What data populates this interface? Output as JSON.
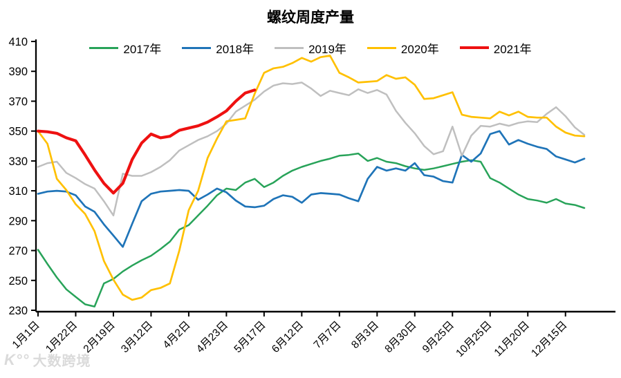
{
  "title": "螺纹周度产量",
  "watermark": {
    "logo": "K°°",
    "text": "大数跨境"
  },
  "chart_data": {
    "type": "line",
    "title": "螺纹周度产量",
    "xlabel": "",
    "ylabel": "",
    "ylim": [
      230,
      410
    ],
    "ytick_step": 20,
    "grid": false,
    "legend_position": "top",
    "x_tick_labels": [
      "1月1日",
      "1月22日",
      "2月19日",
      "3月12日",
      "4月2日",
      "4月23日",
      "5月17日",
      "6月12日",
      "7月7日",
      "8月3日",
      "8月30日",
      "9月25日",
      "10月25日",
      "11月20日",
      "12月15日"
    ],
    "points_per_tick": 4,
    "n_points": 59,
    "series": [
      {
        "name": "2017年",
        "color": "#28A359",
        "line_width": 2.5,
        "values": [
          270.5,
          261,
          252,
          244,
          239,
          234,
          232.5,
          248,
          251,
          256,
          260,
          263.5,
          266.5,
          271,
          276,
          284,
          287,
          293.5,
          300,
          307,
          311.5,
          310.5,
          315.5,
          318,
          312.5,
          315.5,
          320,
          323.5,
          326,
          328,
          330,
          331.5,
          333.5,
          334,
          335,
          330,
          332,
          329.5,
          328.5,
          326.5,
          325,
          324,
          325,
          326.5,
          328,
          329.5,
          330.5,
          329.5,
          318.5,
          315.5,
          311.5,
          307.5,
          304.5,
          303.5,
          302,
          304.5,
          301.5,
          300.5,
          298.5
        ]
      },
      {
        "name": "2018年",
        "color": "#1F74B8",
        "line_width": 2.7,
        "values": [
          308,
          309.5,
          310,
          309.5,
          307,
          299.5,
          296,
          287.5,
          280,
          272.5,
          288,
          303,
          308,
          309.5,
          310,
          310.5,
          310,
          304,
          307.5,
          311.5,
          309,
          303.5,
          299.5,
          299,
          300,
          304.5,
          307,
          306,
          302,
          307.5,
          308.5,
          308,
          307.5,
          305,
          303,
          318,
          326,
          323.5,
          325,
          323.5,
          328.5,
          320.5,
          319.5,
          316.5,
          315.5,
          334,
          329.5,
          335,
          348,
          350,
          341,
          344,
          341.5,
          339.5,
          338,
          333,
          331,
          329,
          331.5
        ]
      },
      {
        "name": "2019年",
        "color": "#BFBFBF",
        "line_width": 2.5,
        "values": [
          326,
          328.5,
          329.5,
          322,
          318.5,
          314.5,
          311.5,
          303,
          293.5,
          321.5,
          320,
          320,
          322.5,
          326,
          330.5,
          337,
          340.5,
          344,
          346.5,
          350,
          355,
          363,
          367,
          371,
          376.5,
          380.5,
          382,
          381.5,
          382.5,
          378.5,
          373.5,
          377,
          375.5,
          374,
          378,
          375.5,
          377.5,
          374.5,
          363.5,
          355.5,
          348.5,
          340,
          334.5,
          336.5,
          353,
          333.5,
          347,
          353.5,
          353,
          355,
          353.5,
          355.5,
          356.5,
          356,
          361.5,
          366,
          360,
          352.5,
          347.5
        ]
      },
      {
        "name": "2020年",
        "color": "#FFC000",
        "line_width": 2.7,
        "values": [
          350,
          341.5,
          318,
          310.5,
          301,
          294.5,
          283,
          263,
          250.5,
          240.5,
          237,
          238.5,
          243.5,
          245,
          248,
          270,
          297,
          310,
          332,
          345,
          356.5,
          357.5,
          358.5,
          375,
          389,
          392,
          393,
          395.5,
          399,
          396.5,
          399.5,
          400.5,
          389,
          386,
          382.5,
          383,
          383.5,
          387.5,
          385,
          386,
          381,
          371.5,
          372,
          374,
          376,
          361,
          359.5,
          359,
          358.5,
          363,
          360.5,
          363,
          359.5,
          359,
          359,
          353,
          349,
          347,
          346.5
        ]
      },
      {
        "name": "2021年",
        "color": "#EE1111",
        "line_width": 4.2,
        "values": [
          350,
          349.5,
          348.5,
          345.5,
          343.5,
          334,
          324,
          315,
          308.5,
          315,
          331,
          342,
          348,
          345.5,
          346.5,
          350.5,
          352,
          353.5,
          356,
          359.5,
          363.5,
          370,
          375.5,
          377.5
        ]
      }
    ]
  }
}
